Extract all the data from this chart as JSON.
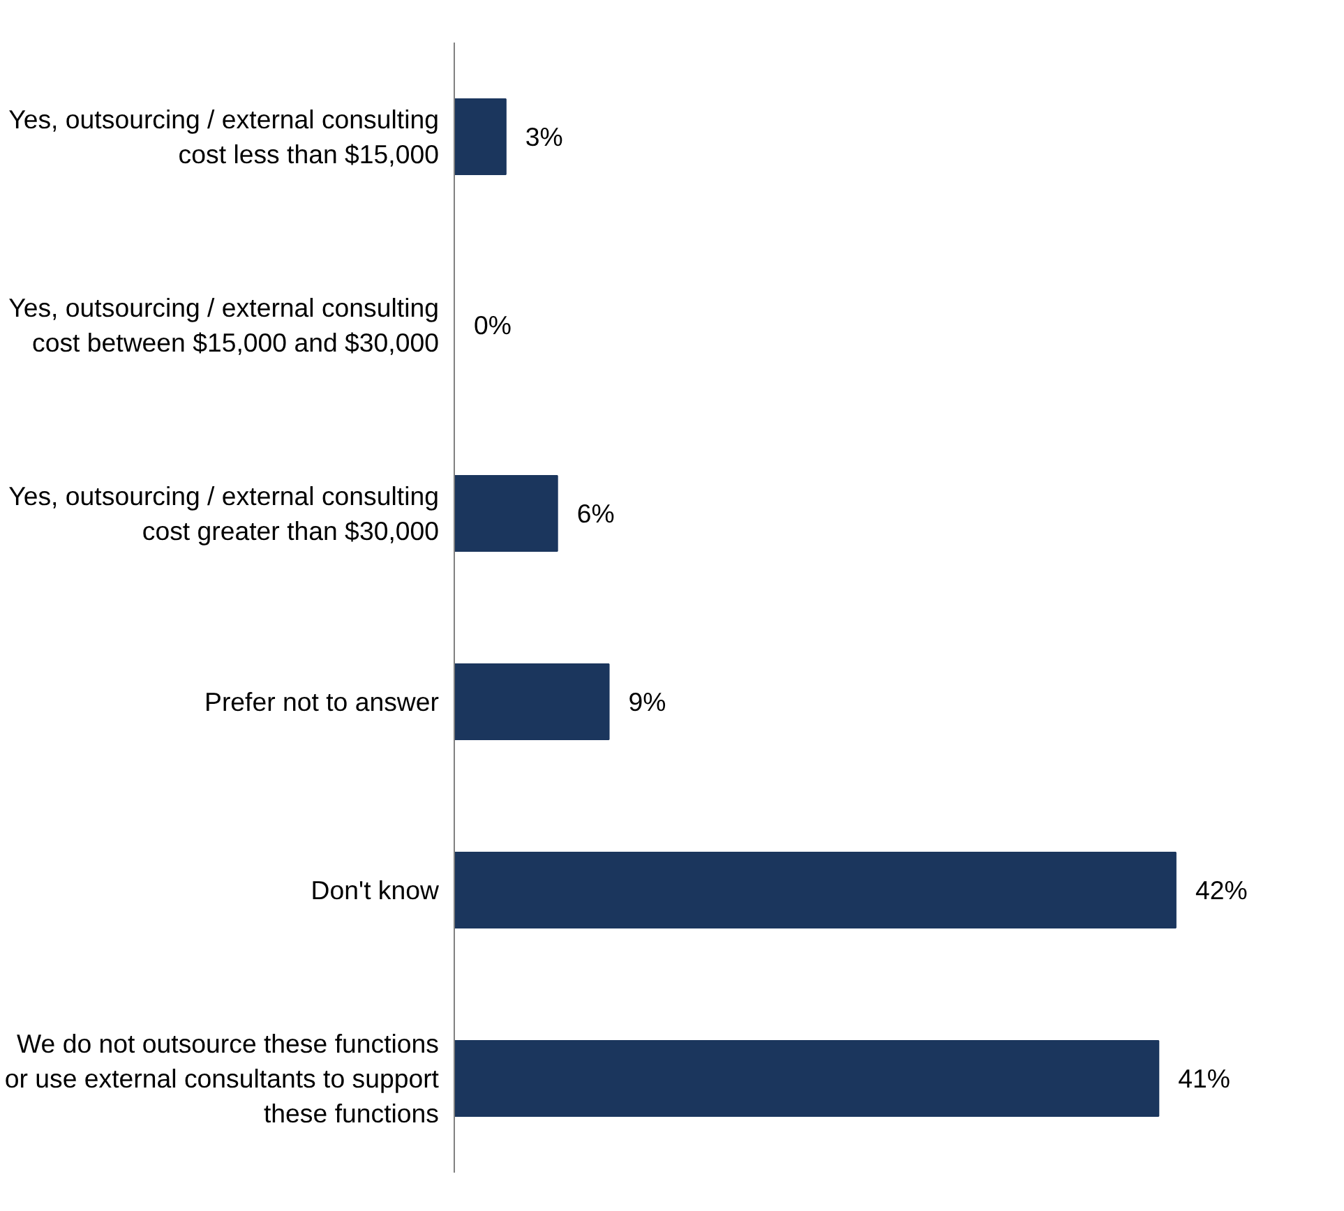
{
  "chart_data": {
    "type": "bar",
    "orientation": "horizontal",
    "categories": [
      "Yes, outsourcing / external consulting\ncost less than $15,000",
      "Yes, outsourcing / external consulting\ncost between $15,000 and $30,000",
      "Yes, outsourcing / external consulting\ncost greater than $30,000",
      "Prefer not to answer",
      "Don't know",
      "We do not outsource these functions\nor use external consultants to support\nthese functions"
    ],
    "values": [
      3,
      0,
      6,
      9,
      42,
      41
    ],
    "value_labels": [
      "3%",
      "0%",
      "6%",
      "9%",
      "42%",
      "41%"
    ],
    "color": "#1b365d",
    "grid": false
  }
}
